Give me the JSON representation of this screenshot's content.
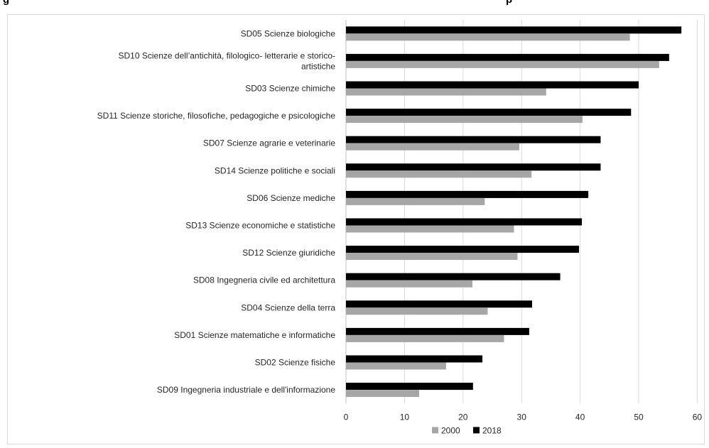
{
  "header": {
    "left_fragment": "g",
    "right_fragment": "p"
  },
  "chart_data": {
    "type": "bar",
    "orientation": "horizontal",
    "categories": [
      "SD05 Scienze biologiche",
      [
        "SD10 Scienze dell’antichità, filologico- letterarie e storico-",
        "artistiche"
      ],
      "SD03 Scienze chimiche",
      "SD11 Scienze storiche, filosofiche, pedagogiche e psicologiche",
      "SD07 Scienze agrarie e veterinarie",
      "SD14 Scienze politiche e sociali",
      "SD06 Scienze mediche",
      "SD13 Scienze economiche e statistiche",
      "SD12 Scienze giuridiche",
      "SD08 Ingegneria civile ed architettura",
      "SD04 Scienze della terra",
      "SD01 Scienze matematiche e informatiche",
      "SD02 Scienze fisiche",
      "SD09 Ingegneria industriale e dell'informazione"
    ],
    "series": [
      {
        "name": "2018",
        "color": "#000000",
        "values": [
          57.3,
          55.2,
          50.0,
          48.7,
          43.5,
          43.5,
          41.4,
          40.3,
          39.8,
          36.6,
          31.8,
          31.3,
          23.3,
          21.7
        ]
      },
      {
        "name": "2000",
        "color": "#a6a6a6",
        "values": [
          48.5,
          53.5,
          34.2,
          40.4,
          29.6,
          31.7,
          23.7,
          28.7,
          29.3,
          21.6,
          24.2,
          27.0,
          17.1,
          12.5
        ]
      }
    ],
    "legend_order": [
      "2000",
      "2018"
    ],
    "x_ticks": [
      "0",
      "10",
      "20",
      "30",
      "40",
      "50",
      "60"
    ],
    "xlim": [
      0,
      60
    ],
    "grid": "vertical",
    "legend_position": "bottom"
  }
}
